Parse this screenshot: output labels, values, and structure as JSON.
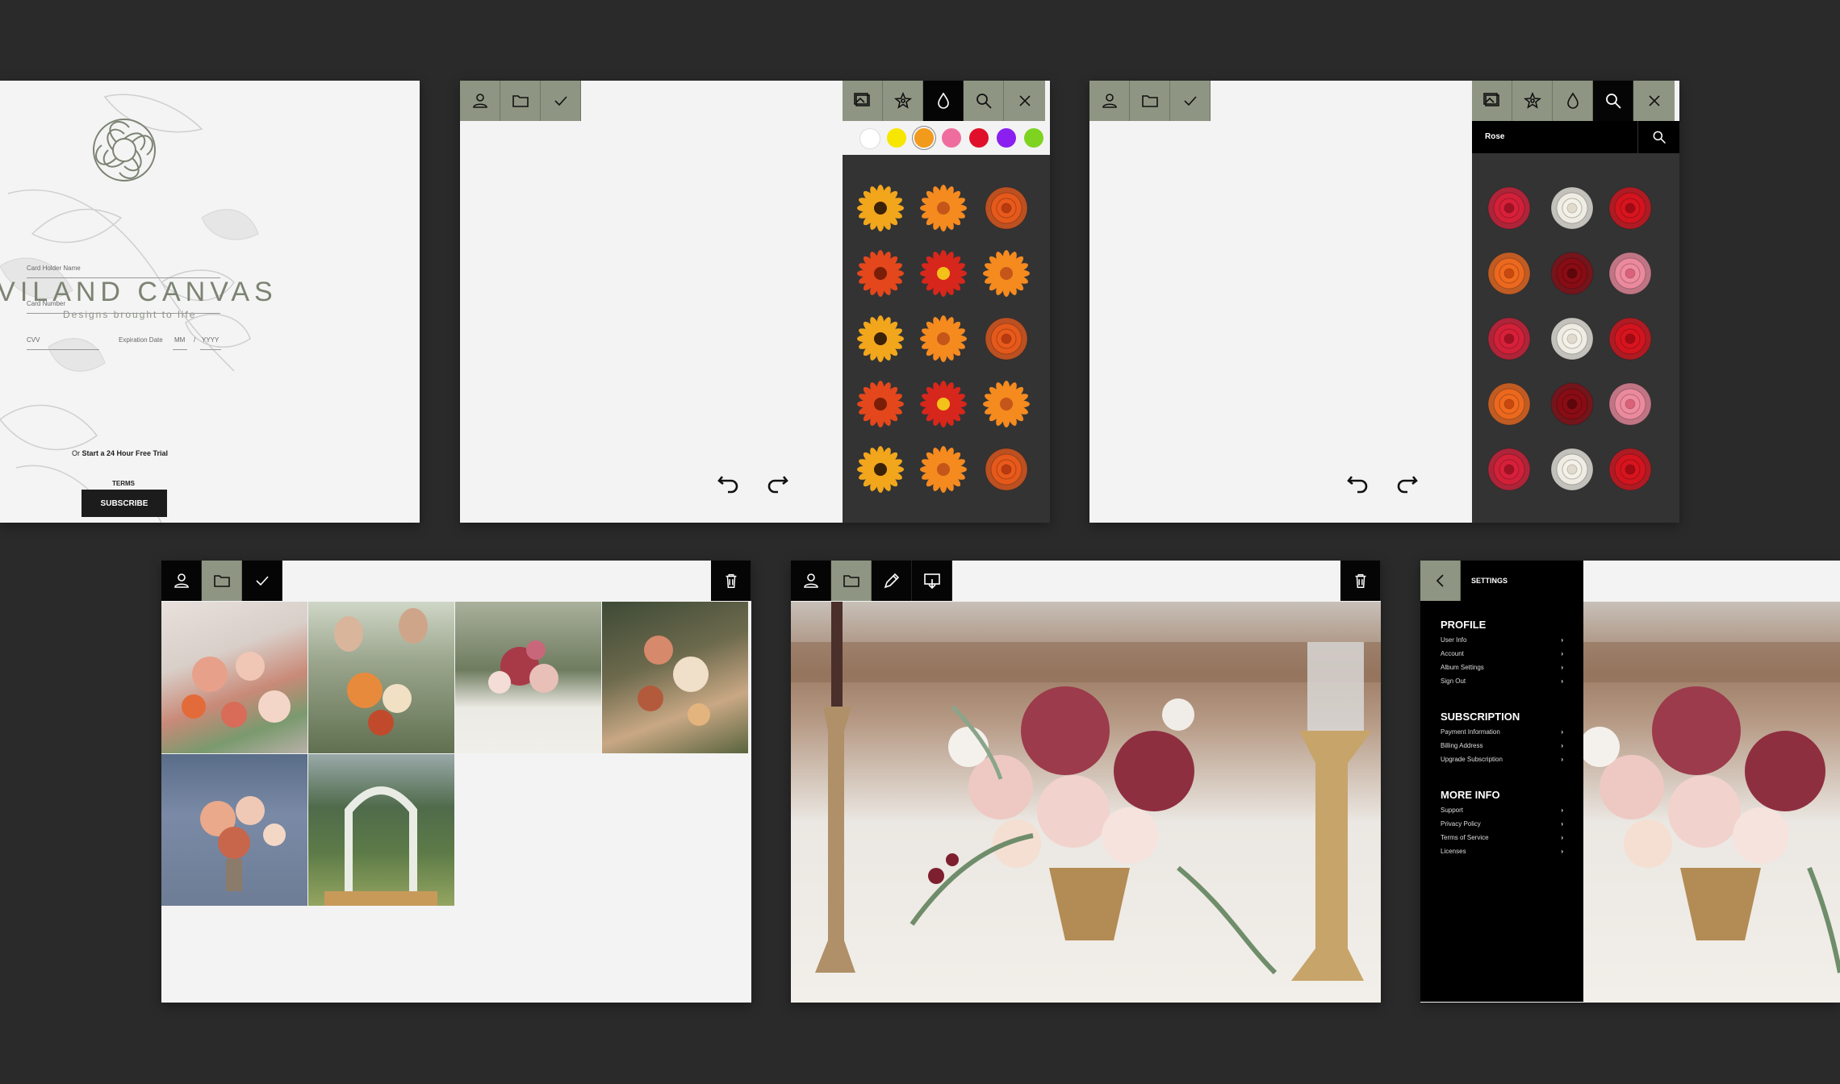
{
  "login": {
    "brand": "AVILAND CANVAS",
    "tagline": "Designs brought to life",
    "card_holder_label": "Card Holder Name",
    "card_number_label": "Card Number",
    "cvv_label": "CVV",
    "expiration_label": "Expiration Date",
    "mm_label": "MM",
    "slash": "/",
    "yyyy_label": "YYYY",
    "subscribe_label": "SUBSCRIBE",
    "trial_prefix": "Or",
    "trial_link": "Start a 24 Hour Free Trial",
    "terms_label": "TERMS"
  },
  "toolbar_icons": {
    "user": "user-icon",
    "folder": "folder-icon",
    "check": "check-icon",
    "image": "image-icon",
    "flower": "flower-icon",
    "drop": "drop-icon",
    "search": "search-icon",
    "close": "close-icon",
    "trash": "trash-icon",
    "pencil": "pencil-icon",
    "download": "download-icon"
  },
  "color_swatches": [
    "#ffffff",
    "#f6e600",
    "#f29a1c",
    "#ef6d9e",
    "#e0102a",
    "#8b1ff0",
    "#7ed321"
  ],
  "search_panel": {
    "query": "Rose"
  },
  "settings": {
    "title": "SETTINGS",
    "sections": [
      {
        "heading": "PROFILE",
        "items": [
          "User Info",
          "Account",
          "Album Settings",
          "Sign Out"
        ]
      },
      {
        "heading": "SUBSCRIPTION",
        "items": [
          "Payment Information",
          "Billing Address",
          "Upgrade Subscription"
        ]
      },
      {
        "heading": "MORE INFO",
        "items": [
          "Support",
          "Privacy Policy",
          "Terms of Service",
          "Licenses"
        ]
      }
    ],
    "chevron": "›"
  },
  "colors": {
    "sage": "#8e9683",
    "panel_bg": "#f3f3f3",
    "sidebar_dark": "#333334",
    "page_bg": "#2a2a2a"
  }
}
